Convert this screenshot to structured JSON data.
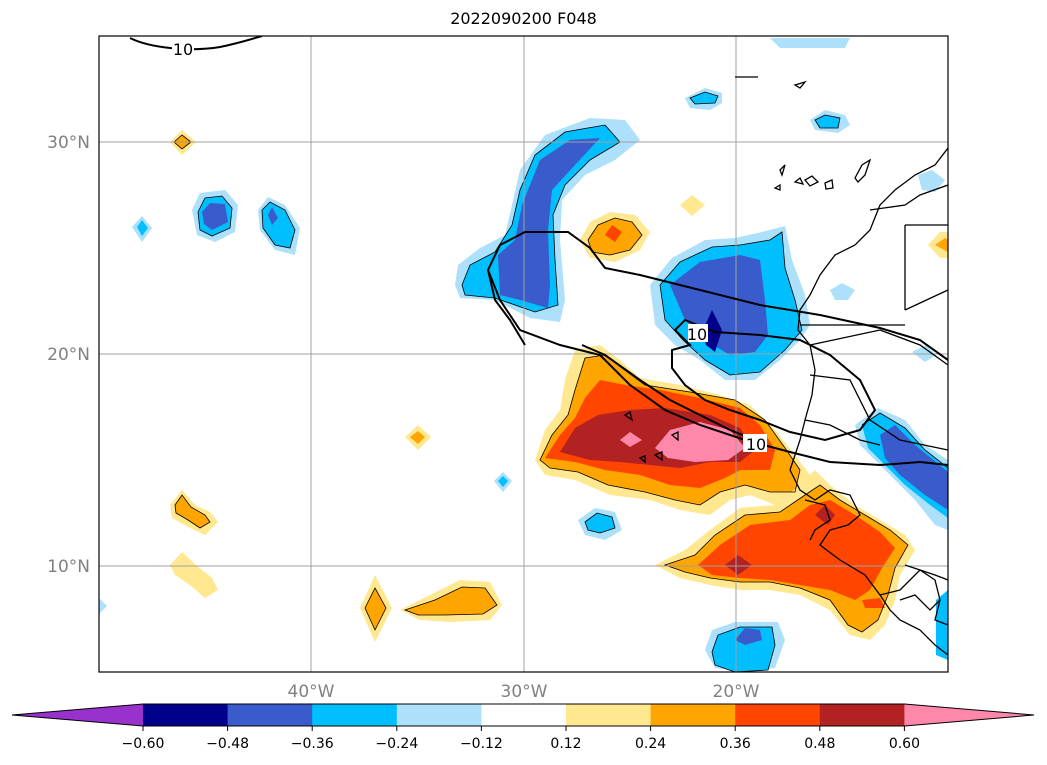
{
  "title": "2022090200 F048",
  "map": {
    "lat_labels": [
      "30°N",
      "20°N",
      "10°N"
    ],
    "lon_labels": [
      "40°W",
      "30°W",
      "20°W"
    ],
    "contour_labels": [
      "10",
      "10",
      "10"
    ]
  },
  "colorbar": {
    "levels": [
      "-0.60",
      "-0.48",
      "-0.36",
      "-0.24",
      "-0.12",
      "0.12",
      "0.24",
      "0.36",
      "0.48",
      "0.60"
    ],
    "colors": [
      "#9932CC",
      "#00008B",
      "#3A5BCC",
      "#00BFFF",
      "#ADE0FA",
      "#FFFFFF",
      "#FFE88F",
      "#FFA500",
      "#FF4500",
      "#B22222",
      "#FF88AA"
    ]
  }
}
